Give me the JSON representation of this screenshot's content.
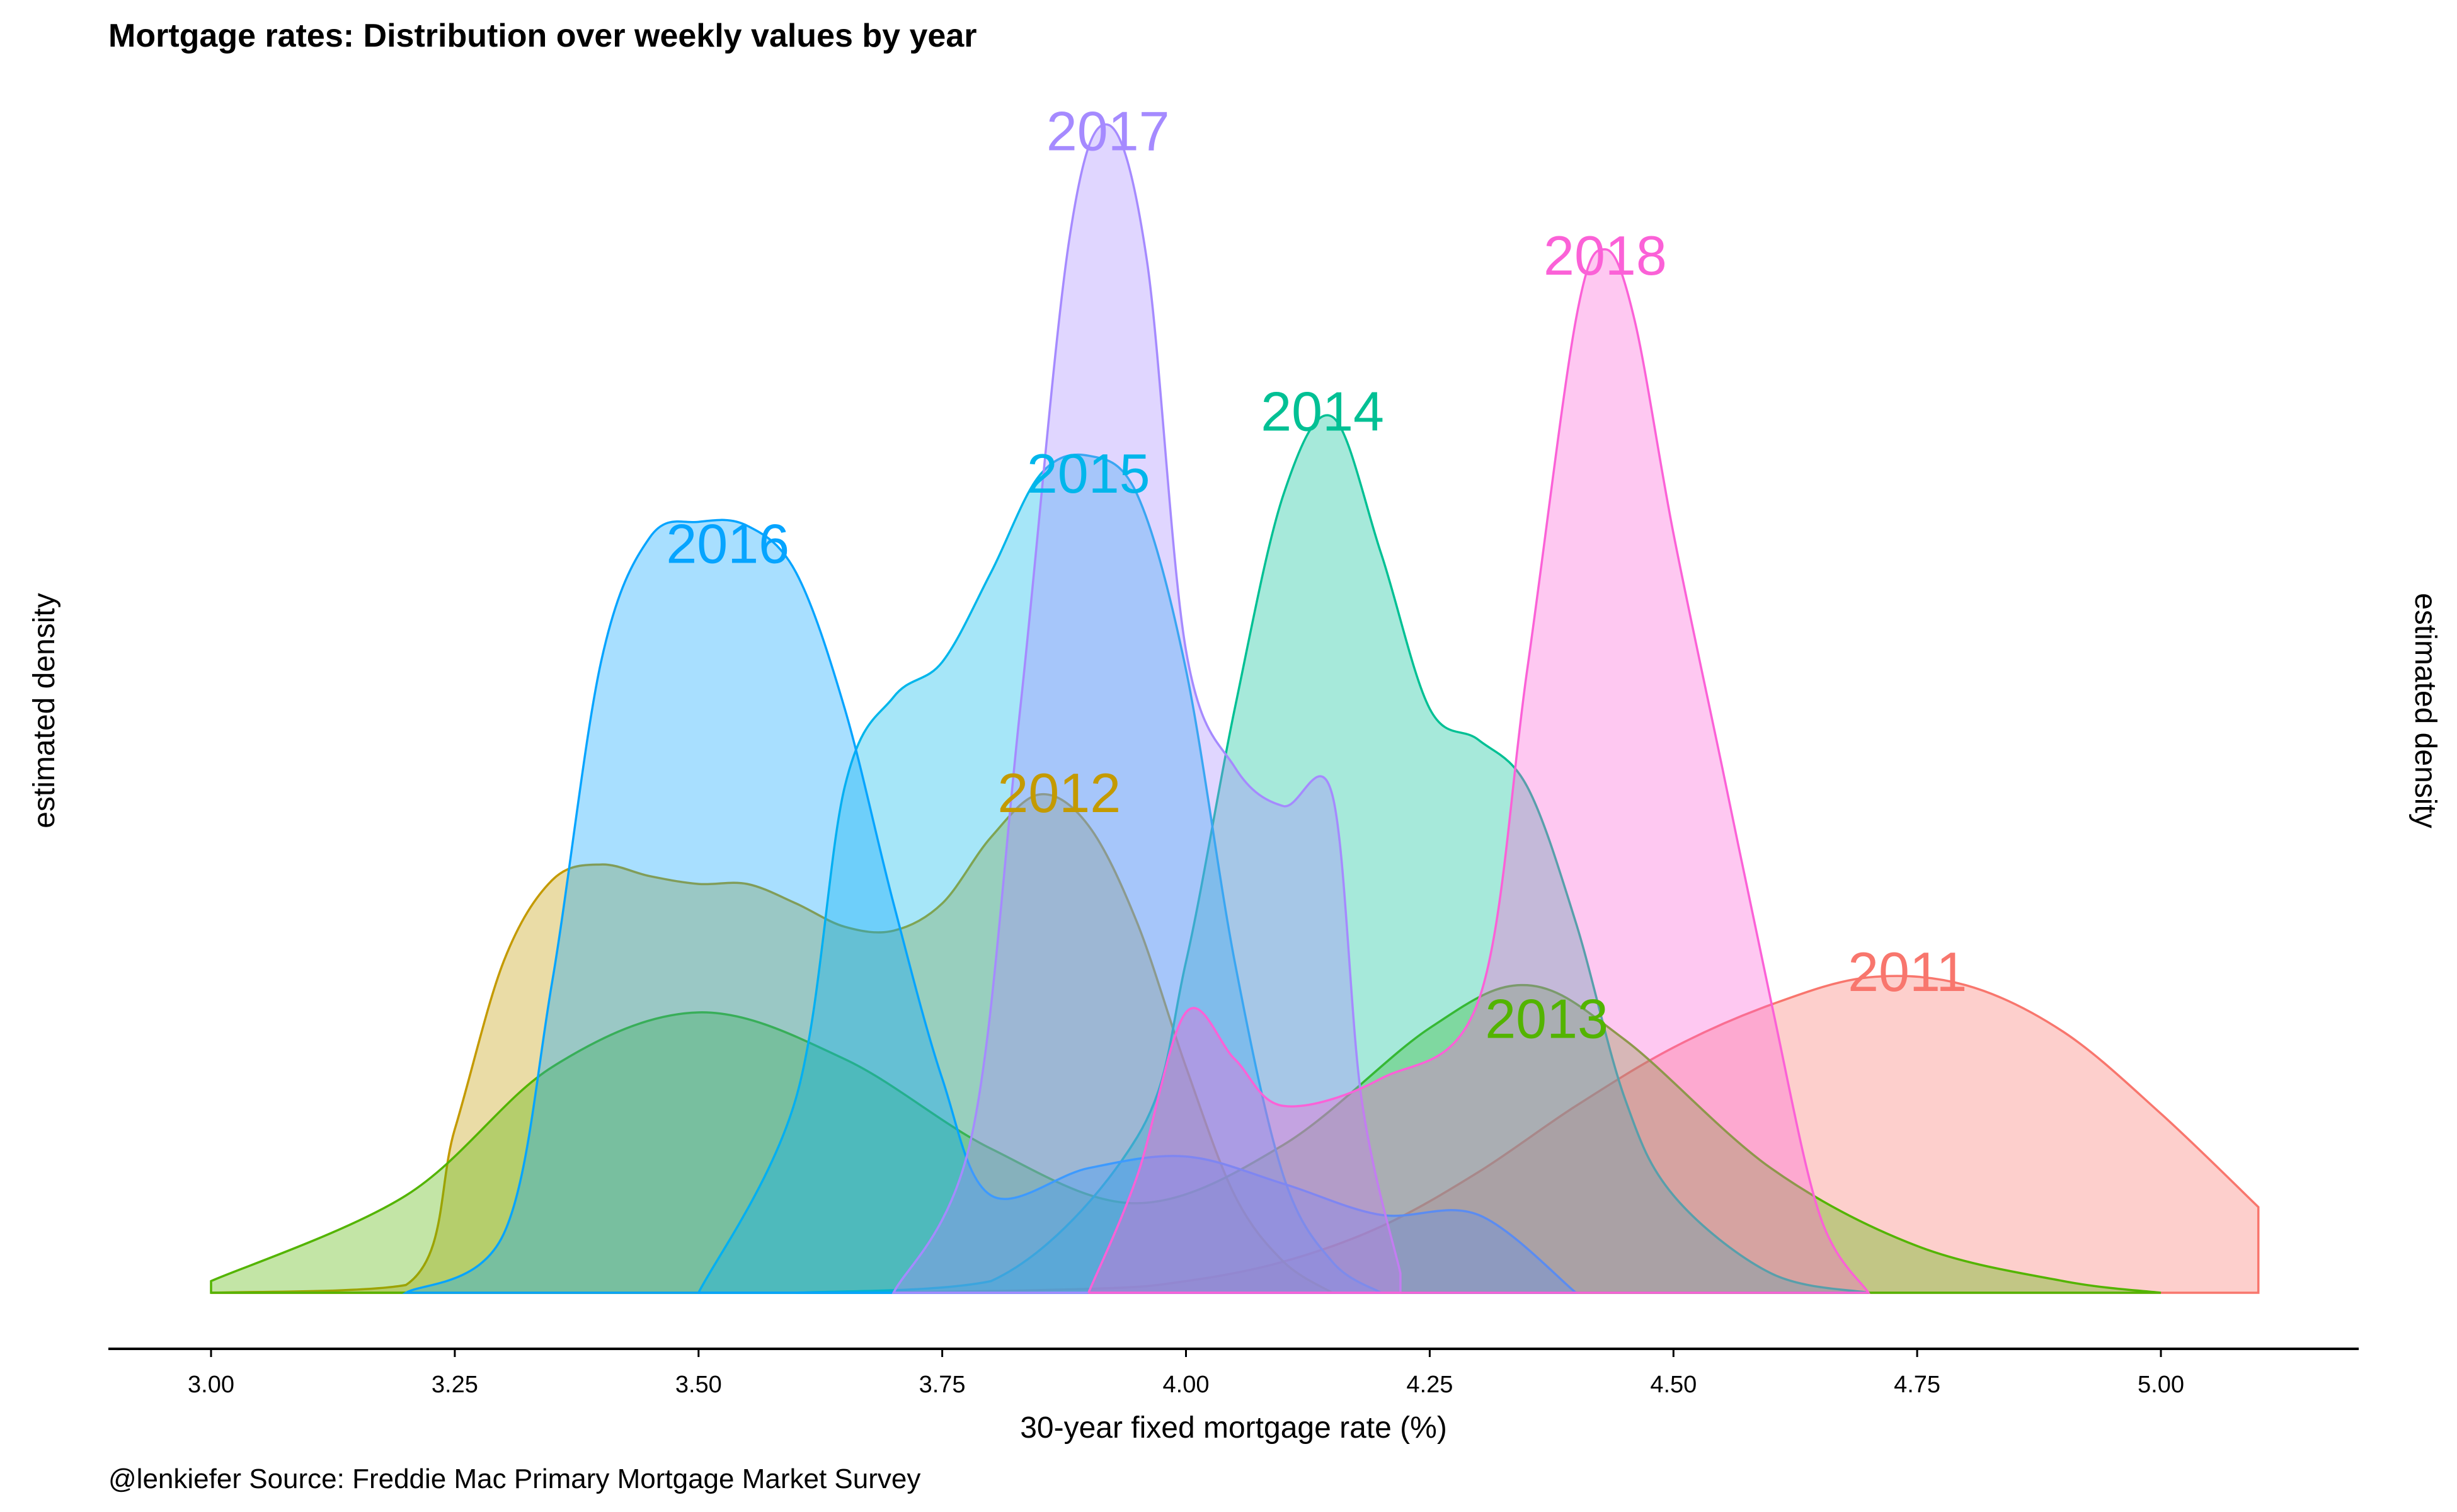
{
  "chart_data": {
    "type": "area",
    "title": "Mortgage rates: Distribution over weekly values by year",
    "xlabel": "30-year fixed mortgage rate (%)",
    "ylabel_left": "estimated density",
    "ylabel_right": "estimated density",
    "caption": "@lenkiefer Source: Freddie Mac Primary Mortgage Market Survey",
    "xlim": [
      2.9,
      5.2
    ],
    "ylim": [
      0,
      3.0
    ],
    "x_ticks": [
      "3.00",
      "3.25",
      "3.50",
      "3.75",
      "4.00",
      "4.25",
      "4.50",
      "4.75",
      "5.00"
    ],
    "x_tick_values": [
      3.0,
      3.25,
      3.5,
      3.75,
      4.0,
      4.25,
      4.5,
      4.75,
      5.0
    ],
    "grid": false,
    "legend": "none (labels placed on peaks)",
    "series": [
      {
        "name": "2011",
        "color": "#F8766D",
        "x": [
          3.0,
          3.6,
          3.9,
          4.0,
          4.1,
          4.2,
          4.3,
          4.4,
          4.5,
          4.6,
          4.7,
          4.8,
          4.9,
          5.0,
          5.1
        ],
        "y": [
          0.0,
          0.0,
          0.01,
          0.03,
          0.08,
          0.17,
          0.31,
          0.48,
          0.63,
          0.74,
          0.81,
          0.79,
          0.67,
          0.46,
          0.22
        ]
      },
      {
        "name": "2012",
        "color": "#C49A00",
        "x": [
          3.0,
          3.2,
          3.25,
          3.3,
          3.35,
          3.4,
          3.45,
          3.5,
          3.55,
          3.6,
          3.65,
          3.7,
          3.75,
          3.8,
          3.85,
          3.9,
          3.95,
          4.0,
          4.05,
          4.1,
          4.15
        ],
        "y": [
          0.0,
          0.02,
          0.42,
          0.85,
          1.06,
          1.1,
          1.07,
          1.05,
          1.05,
          1.0,
          0.94,
          0.93,
          1.0,
          1.17,
          1.28,
          1.2,
          0.95,
          0.58,
          0.25,
          0.08,
          0.0
        ]
      },
      {
        "name": "2013",
        "color": "#53B400",
        "x": [
          3.0,
          3.2,
          3.35,
          3.5,
          3.65,
          3.8,
          3.95,
          4.1,
          4.25,
          4.35,
          4.45,
          4.6,
          4.75,
          4.9,
          5.0
        ],
        "y": [
          0.03,
          0.25,
          0.58,
          0.72,
          0.6,
          0.37,
          0.23,
          0.38,
          0.68,
          0.79,
          0.65,
          0.32,
          0.12,
          0.03,
          0.0
        ]
      },
      {
        "name": "2014",
        "color": "#00C094",
        "x": [
          3.6,
          3.8,
          3.95,
          4.0,
          4.05,
          4.1,
          4.15,
          4.2,
          4.25,
          4.3,
          4.35,
          4.4,
          4.45,
          4.5,
          4.6,
          4.7
        ],
        "y": [
          0.0,
          0.03,
          0.4,
          0.85,
          1.5,
          2.05,
          2.25,
          1.9,
          1.5,
          1.42,
          1.3,
          0.95,
          0.5,
          0.25,
          0.05,
          0.0
        ]
      },
      {
        "name": "2015",
        "color": "#00B6EB",
        "x": [
          3.5,
          3.6,
          3.65,
          3.7,
          3.75,
          3.8,
          3.85,
          3.9,
          3.95,
          4.0,
          4.05,
          4.1,
          4.15,
          4.2
        ],
        "y": [
          0.0,
          0.5,
          1.3,
          1.53,
          1.62,
          1.85,
          2.1,
          2.15,
          2.05,
          1.6,
          0.85,
          0.3,
          0.08,
          0.0
        ]
      },
      {
        "name": "2016",
        "color": "#06A4FF",
        "x": [
          3.2,
          3.3,
          3.35,
          3.4,
          3.45,
          3.5,
          3.55,
          3.6,
          3.65,
          3.7,
          3.75,
          3.8,
          3.9,
          4.0,
          4.1,
          4.2,
          4.3,
          4.4
        ],
        "y": [
          0.0,
          0.15,
          0.8,
          1.62,
          1.94,
          1.98,
          1.97,
          1.85,
          1.5,
          1.0,
          0.55,
          0.25,
          0.32,
          0.35,
          0.28,
          0.2,
          0.2,
          0.0
        ]
      },
      {
        "name": "2017",
        "color": "#A58AFF",
        "x": [
          3.7,
          3.78,
          3.83,
          3.88,
          3.92,
          3.96,
          4.0,
          4.05,
          4.1,
          4.15,
          4.18,
          4.22
        ],
        "y": [
          0.0,
          0.4,
          1.5,
          2.7,
          3.0,
          2.65,
          1.65,
          1.35,
          1.25,
          1.28,
          0.5,
          0.05
        ]
      },
      {
        "name": "2018",
        "color": "#FB61D7",
        "x": [
          3.9,
          3.95,
          4.0,
          4.05,
          4.1,
          4.2,
          4.3,
          4.35,
          4.4,
          4.43,
          4.46,
          4.5,
          4.55,
          4.6,
          4.65,
          4.7
        ],
        "y": [
          0.0,
          0.3,
          0.72,
          0.6,
          0.48,
          0.55,
          0.75,
          1.6,
          2.5,
          2.68,
          2.5,
          1.95,
          1.35,
          0.75,
          0.2,
          0.0
        ]
      }
    ],
    "label_positions": {
      "2011": [
        4.74,
        0.82
      ],
      "2012": [
        3.87,
        1.28
      ],
      "2013": [
        4.37,
        0.7
      ],
      "2014": [
        4.14,
        2.26
      ],
      "2015": [
        3.9,
        2.1
      ],
      "2016": [
        3.53,
        1.92
      ],
      "2017": [
        3.92,
        2.98
      ],
      "2018": [
        4.43,
        2.66
      ]
    }
  }
}
